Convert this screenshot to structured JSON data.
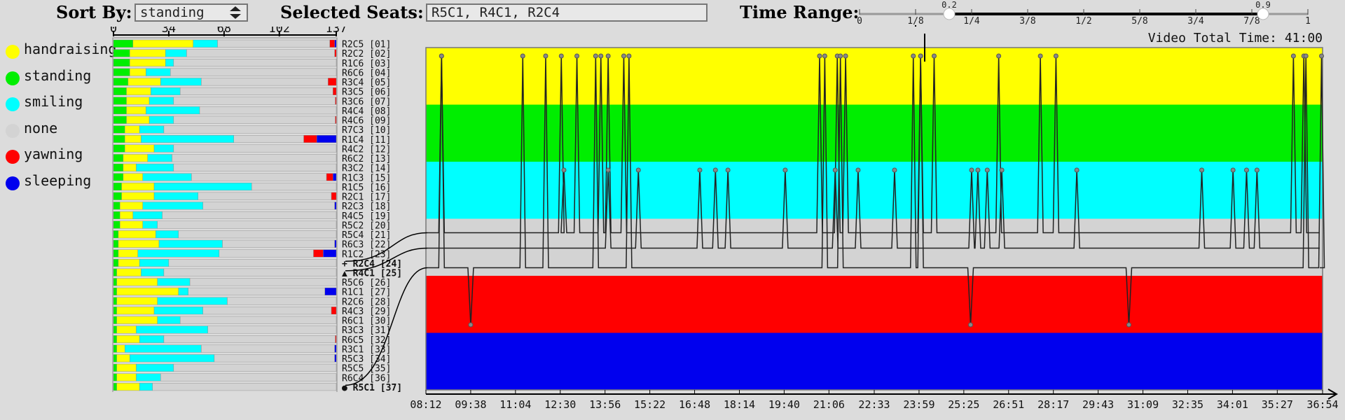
{
  "header": {
    "sort_label": "Sort By:",
    "sort_value": "standing",
    "selected_label": "Selected Seats:",
    "selected_value": "R5C1, R4C1, R2C4",
    "time_range_label": "Time Range:",
    "range_ticks": [
      "0",
      "1/8",
      "1/4",
      "3/8",
      "1/2",
      "5/8",
      "3/4",
      "7/8",
      "1"
    ],
    "range_low": "0.2",
    "range_high": "0.9"
  },
  "legend": [
    {
      "label": "handraising",
      "color": "#ffff00"
    },
    {
      "label": "standing",
      "color": "#00ee00"
    },
    {
      "label": "smiling",
      "color": "#00ffff"
    },
    {
      "label": "none",
      "color": "#d3d3d3"
    },
    {
      "label": "yawning",
      "color": "#ff0000"
    },
    {
      "label": "sleeping",
      "color": "#0000ee"
    }
  ],
  "bar_axis": {
    "ticks": [
      "0",
      "34",
      "68",
      "102",
      "137"
    ],
    "max": 137
  },
  "seats": [
    {
      "name": "R2C5",
      "rank": "[01]",
      "standing": 12,
      "handraising": 37,
      "smiling": 15,
      "none": 0,
      "yawning": 3,
      "sleeping": 1
    },
    {
      "name": "R2C2",
      "rank": "[02]",
      "standing": 10,
      "handraising": 22,
      "smiling": 13,
      "yawning": 1,
      "sleeping": 0
    },
    {
      "name": "R1C6",
      "rank": "[03]",
      "standing": 10,
      "handraising": 22,
      "smiling": 5,
      "yawning": 0,
      "sleeping": 0
    },
    {
      "name": "R6C6",
      "rank": "[04]",
      "standing": 10,
      "handraising": 10,
      "smiling": 15,
      "yawning": 0,
      "sleeping": 0
    },
    {
      "name": "R3C4",
      "rank": "[05]",
      "standing": 9,
      "handraising": 20,
      "smiling": 25,
      "yawning": 5,
      "sleeping": 0
    },
    {
      "name": "R3C5",
      "rank": "[06]",
      "standing": 8,
      "handraising": 15,
      "smiling": 18,
      "yawning": 2,
      "sleeping": 0
    },
    {
      "name": "R3C6",
      "rank": "[07]",
      "standing": 8,
      "handraising": 14,
      "smiling": 15,
      "yawning": 0.6,
      "sleeping": 0
    },
    {
      "name": "R4C4",
      "rank": "[08]",
      "standing": 8,
      "handraising": 12,
      "smiling": 33,
      "yawning": 0,
      "sleeping": 0
    },
    {
      "name": "R4C6",
      "rank": "[09]",
      "standing": 8,
      "handraising": 14,
      "smiling": 15,
      "yawning": 0.6,
      "sleeping": 0
    },
    {
      "name": "R7C3",
      "rank": "[10]",
      "standing": 7,
      "handraising": 9,
      "smiling": 15,
      "yawning": 0,
      "sleeping": 0
    },
    {
      "name": "R1C4",
      "rank": "[11]",
      "standing": 7,
      "handraising": 10,
      "smiling": 57,
      "yawning": 8,
      "sleeping": 12
    },
    {
      "name": "R4C2",
      "rank": "[12]",
      "standing": 7,
      "handraising": 18,
      "smiling": 12,
      "yawning": 0,
      "sleeping": 0
    },
    {
      "name": "R6C2",
      "rank": "[13]",
      "standing": 6,
      "handraising": 15,
      "smiling": 15,
      "yawning": 0,
      "sleeping": 0
    },
    {
      "name": "R3C2",
      "rank": "[14]",
      "standing": 6,
      "handraising": 8,
      "smiling": 23,
      "yawning": 0,
      "sleeping": 0
    },
    {
      "name": "R1C3",
      "rank": "[15]",
      "standing": 6,
      "handraising": 12,
      "smiling": 30,
      "yawning": 4,
      "sleeping": 2
    },
    {
      "name": "R1C5",
      "rank": "[16]",
      "standing": 5,
      "handraising": 20,
      "smiling": 60,
      "yawning": 0,
      "sleeping": 0
    },
    {
      "name": "R2C1",
      "rank": "[17]",
      "standing": 5,
      "handraising": 20,
      "smiling": 27,
      "yawning": 3,
      "sleeping": 0
    },
    {
      "name": "R2C3",
      "rank": "[18]",
      "standing": 4,
      "handraising": 14,
      "smiling": 37,
      "yawning": 0,
      "sleeping": 1
    },
    {
      "name": "R4C5",
      "rank": "[19]",
      "standing": 4,
      "handraising": 8,
      "smiling": 18,
      "yawning": 0,
      "sleeping": 0
    },
    {
      "name": "R5C2",
      "rank": "[20]",
      "standing": 4,
      "handraising": 14,
      "smiling": 9,
      "yawning": 0,
      "sleeping": 0
    },
    {
      "name": "R5C4",
      "rank": "[21]",
      "standing": 3,
      "handraising": 23,
      "smiling": 14,
      "yawning": 0,
      "sleeping": 0
    },
    {
      "name": "R6C3",
      "rank": "[22]",
      "standing": 3,
      "handraising": 25,
      "smiling": 39,
      "yawning": 0,
      "sleeping": 1
    },
    {
      "name": "R1C2",
      "rank": "[23]",
      "standing": 3,
      "handraising": 12,
      "smiling": 50,
      "yawning": 6,
      "sleeping": 8
    },
    {
      "name": "R2C4",
      "rank": "[24]",
      "standing": 3,
      "handraising": 13,
      "smiling": 18,
      "yawning": 0,
      "sleeping": 0
    },
    {
      "name": "R4C1",
      "rank": "[25]",
      "standing": 2,
      "handraising": 15,
      "smiling": 14,
      "yawning": 0,
      "sleeping": 0
    },
    {
      "name": "R5C6",
      "rank": "[26]",
      "standing": 2,
      "handraising": 25,
      "smiling": 20,
      "yawning": 0,
      "sleeping": 0
    },
    {
      "name": "R1C1",
      "rank": "[27]",
      "standing": 2,
      "handraising": 38,
      "smiling": 6,
      "yawning": 0,
      "sleeping": 7
    },
    {
      "name": "R2C6",
      "rank": "[28]",
      "standing": 2,
      "handraising": 25,
      "smiling": 43,
      "yawning": 0,
      "sleeping": 0
    },
    {
      "name": "R4C3",
      "rank": "[29]",
      "standing": 2,
      "handraising": 23,
      "smiling": 30,
      "yawning": 3,
      "sleeping": 0
    },
    {
      "name": "R6C1",
      "rank": "[30]",
      "standing": 2,
      "handraising": 25,
      "smiling": 14,
      "yawning": 0,
      "sleeping": 0
    },
    {
      "name": "R3C3",
      "rank": "[31]",
      "standing": 2,
      "handraising": 12,
      "smiling": 44,
      "yawning": 0,
      "sleeping": 0
    },
    {
      "name": "R6C5",
      "rank": "[32]",
      "standing": 2,
      "handraising": 14,
      "smiling": 15,
      "yawning": 0.6,
      "sleeping": 0
    },
    {
      "name": "R3C1",
      "rank": "[33]",
      "standing": 2,
      "handraising": 5,
      "smiling": 47,
      "yawning": 0,
      "sleeping": 1
    },
    {
      "name": "R5C3",
      "rank": "[34]",
      "standing": 2,
      "handraising": 8,
      "smiling": 52,
      "yawning": 0,
      "sleeping": 1
    },
    {
      "name": "R5C5",
      "rank": "[35]",
      "standing": 2,
      "handraising": 12,
      "smiling": 23,
      "yawning": 0,
      "sleeping": 0
    },
    {
      "name": "R6C4",
      "rank": "[36]",
      "standing": 2,
      "handraising": 12,
      "smiling": 15,
      "yawning": 0,
      "sleeping": 0
    },
    {
      "name": "R5C1",
      "rank": "[37]",
      "standing": 2,
      "handraising": 14,
      "smiling": 8,
      "yawning": 0,
      "sleeping": 0
    }
  ],
  "selected_markers": [
    {
      "seat": "R2C4",
      "symbol": "+"
    },
    {
      "seat": "R4C1",
      "symbol": "▲"
    },
    {
      "seat": "R5C1",
      "symbol": "●"
    }
  ],
  "timeline": {
    "video_total_label": "Video Total Time: 41:00",
    "ticks": [
      "08:12",
      "09:38",
      "11:04",
      "12:30",
      "13:56",
      "15:22",
      "16:48",
      "18:14",
      "19:40",
      "21:06",
      "22:33",
      "23:59",
      "25:25",
      "26:51",
      "28:17",
      "29:43",
      "31:09",
      "32:35",
      "34:01",
      "35:27",
      "36:54"
    ],
    "bands": [
      "handraising",
      "standing",
      "smiling",
      "none",
      "yawning",
      "sleeping"
    ],
    "series": [
      {
        "seat": "R2C4",
        "spikes": [
          {
            "t": "08:42",
            "state": "handraising"
          },
          {
            "t": "12:32",
            "state": "handraising"
          },
          {
            "t": "12:37",
            "state": "smiling"
          },
          {
            "t": "13:02",
            "state": "handraising"
          },
          {
            "t": "13:48",
            "state": "handraising"
          },
          {
            "t": "14:02",
            "state": "handraising"
          },
          {
            "t": "14:32",
            "state": "handraising"
          },
          {
            "t": "20:48",
            "state": "handraising"
          },
          {
            "t": "21:22",
            "state": "handraising"
          },
          {
            "t": "21:38",
            "state": "handraising"
          },
          {
            "t": "24:02",
            "state": "handraising"
          },
          {
            "t": "24:28",
            "state": "handraising"
          },
          {
            "t": "26:32",
            "state": "handraising"
          },
          {
            "t": "27:52",
            "state": "handraising"
          },
          {
            "t": "28:22",
            "state": "handraising"
          },
          {
            "t": "35:58",
            "state": "handraising"
          },
          {
            "t": "36:18",
            "state": "handraising"
          }
        ]
      },
      {
        "seat": "R4C1",
        "spikes": [
          {
            "t": "14:02",
            "state": "smiling"
          },
          {
            "t": "15:00",
            "state": "smiling"
          },
          {
            "t": "16:58",
            "state": "smiling"
          },
          {
            "t": "17:28",
            "state": "smiling"
          },
          {
            "t": "17:52",
            "state": "smiling"
          },
          {
            "t": "19:42",
            "state": "smiling"
          },
          {
            "t": "21:18",
            "state": "smiling"
          },
          {
            "t": "22:02",
            "state": "smiling"
          },
          {
            "t": "23:12",
            "state": "smiling"
          },
          {
            "t": "25:40",
            "state": "smiling"
          },
          {
            "t": "25:52",
            "state": "smiling"
          },
          {
            "t": "26:10",
            "state": "smiling"
          },
          {
            "t": "26:38",
            "state": "smiling"
          },
          {
            "t": "29:02",
            "state": "smiling"
          },
          {
            "t": "33:02",
            "state": "smiling"
          },
          {
            "t": "34:02",
            "state": "smiling"
          },
          {
            "t": "34:28",
            "state": "smiling"
          },
          {
            "t": "34:48",
            "state": "smiling"
          }
        ]
      },
      {
        "seat": "R5C1",
        "spikes": [
          {
            "t": "08:42",
            "state": "handraising"
          },
          {
            "t": "09:38",
            "state": "yawning"
          },
          {
            "t": "11:18",
            "state": "handraising"
          },
          {
            "t": "12:02",
            "state": "handraising"
          },
          {
            "t": "13:38",
            "state": "handraising"
          },
          {
            "t": "14:42",
            "state": "handraising"
          },
          {
            "t": "20:58",
            "state": "handraising"
          },
          {
            "t": "21:28",
            "state": "handraising"
          },
          {
            "t": "23:48",
            "state": "handraising"
          },
          {
            "t": "24:02",
            "state": "handraising"
          },
          {
            "t": "25:38",
            "state": "yawning"
          },
          {
            "t": "30:42",
            "state": "yawning"
          },
          {
            "t": "36:22",
            "state": "handraising"
          },
          {
            "t": "36:52",
            "state": "handraising"
          }
        ]
      }
    ]
  }
}
